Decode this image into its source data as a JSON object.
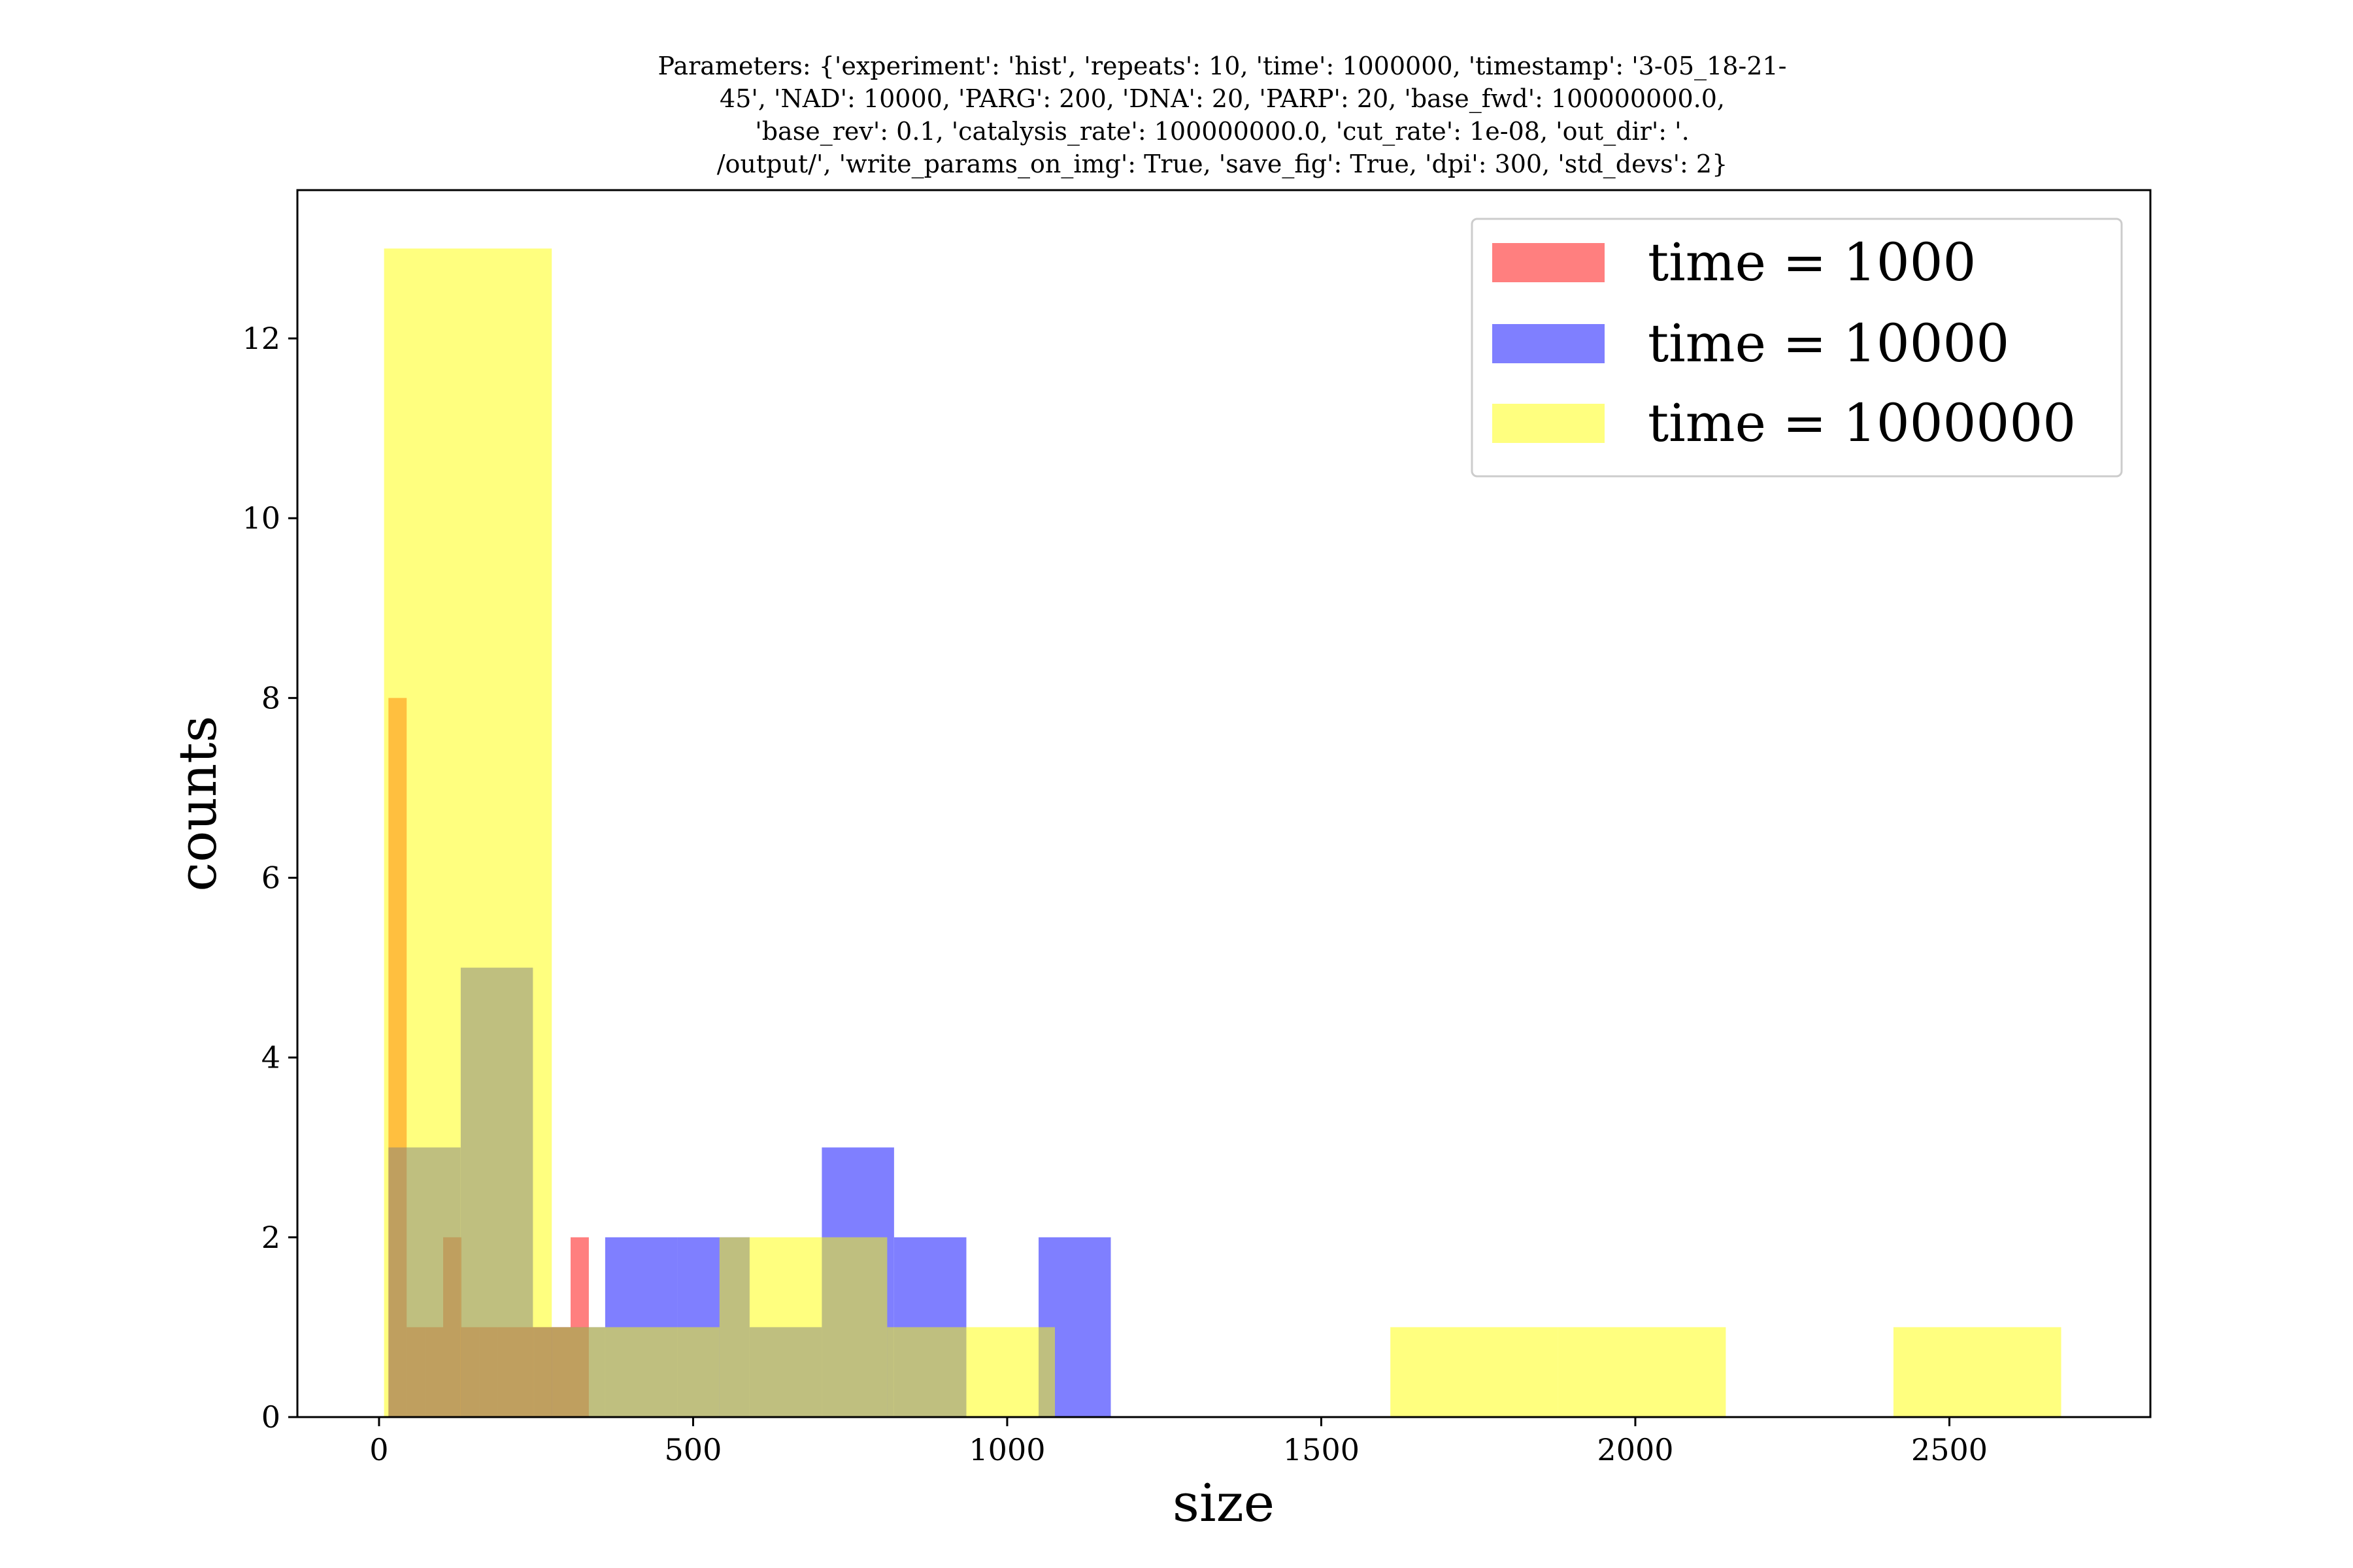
{
  "chart_data": {
    "type": "bar",
    "title_lines": [
      "Parameters: {'experiment': 'hist', 'repeats': 10, 'time': 1000000, 'timestamp': '3-05_18-21-",
      "45', 'NAD': 10000, 'PARG': 200, 'DNA': 20, 'PARP': 20, 'base_fwd': 100000000.0,",
      "'base_rev': 0.1, 'catalysis_rate': 100000000.0, 'cut_rate': 1e-08, 'out_dir': '.",
      "/output/', 'write_params_on_img': True, 'save_fig': True, 'dpi': 300, 'std_devs': 2}"
    ],
    "xlabel": "size",
    "ylabel": "counts",
    "xlim": [
      -130,
      2820
    ],
    "ylim": [
      0,
      13.65
    ],
    "xticks": [
      0,
      500,
      1000,
      1500,
      2000,
      2500
    ],
    "yticks": [
      0,
      2,
      4,
      6,
      8,
      10,
      12
    ],
    "grid": false,
    "legend_placement": "top-right",
    "series": [
      {
        "name": "time = 1000",
        "color": "#ff0000",
        "alpha": 0.5,
        "bins": [
          {
            "x0": 15,
            "x1": 44,
            "count": 8
          },
          {
            "x0": 44,
            "x1": 73,
            "count": 1
          },
          {
            "x0": 73,
            "x1": 102,
            "count": 1
          },
          {
            "x0": 102,
            "x1": 131,
            "count": 2
          },
          {
            "x0": 131,
            "x1": 160,
            "count": 1
          },
          {
            "x0": 160,
            "x1": 189,
            "count": 1
          },
          {
            "x0": 189,
            "x1": 218,
            "count": 1
          },
          {
            "x0": 218,
            "x1": 247,
            "count": 1
          },
          {
            "x0": 247,
            "x1": 276,
            "count": 1
          },
          {
            "x0": 276,
            "x1": 305,
            "count": 1
          },
          {
            "x0": 305,
            "x1": 334,
            "count": 2
          }
        ]
      },
      {
        "name": "time = 10000",
        "color": "#0000ff",
        "alpha": 0.5,
        "bins": [
          {
            "x0": 15,
            "x1": 130,
            "count": 3
          },
          {
            "x0": 130,
            "x1": 245,
            "count": 5
          },
          {
            "x0": 245,
            "x1": 360,
            "count": 1
          },
          {
            "x0": 360,
            "x1": 475,
            "count": 2
          },
          {
            "x0": 475,
            "x1": 590,
            "count": 2
          },
          {
            "x0": 590,
            "x1": 705,
            "count": 1
          },
          {
            "x0": 705,
            "x1": 820,
            "count": 3
          },
          {
            "x0": 820,
            "x1": 935,
            "count": 2
          },
          {
            "x0": 935,
            "x1": 1050,
            "count": 0
          },
          {
            "x0": 1050,
            "x1": 1165,
            "count": 2
          }
        ]
      },
      {
        "name": "time = 1000000",
        "color": "#ffff00",
        "alpha": 0.5,
        "bins": [
          {
            "x0": 8,
            "x1": 275,
            "count": 13
          },
          {
            "x0": 275,
            "x1": 542,
            "count": 1
          },
          {
            "x0": 542,
            "x1": 809,
            "count": 2
          },
          {
            "x0": 809,
            "x1": 1076,
            "count": 1
          },
          {
            "x0": 1076,
            "x1": 1343,
            "count": 0
          },
          {
            "x0": 1343,
            "x1": 1610,
            "count": 0
          },
          {
            "x0": 1610,
            "x1": 1877,
            "count": 1
          },
          {
            "x0": 1877,
            "x1": 2144,
            "count": 1
          },
          {
            "x0": 2144,
            "x1": 2411,
            "count": 0
          },
          {
            "x0": 2411,
            "x1": 2678,
            "count": 1
          }
        ]
      }
    ]
  }
}
